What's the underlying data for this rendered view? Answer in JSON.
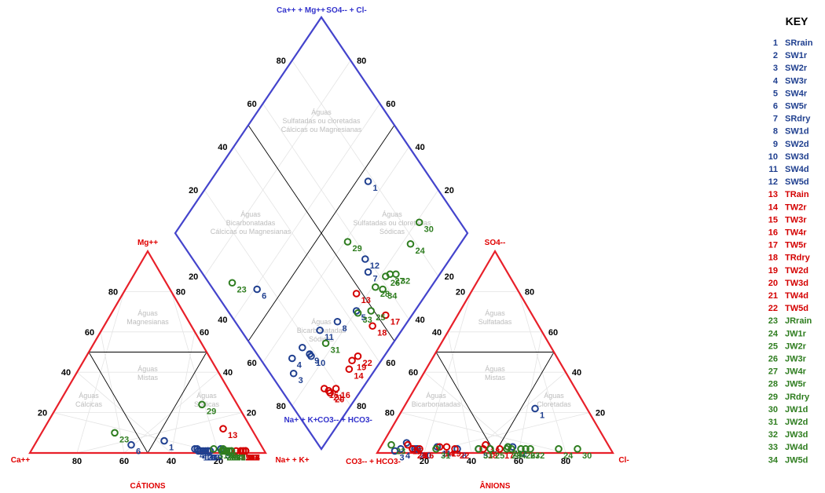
{
  "chart_data": {
    "type": "scatter",
    "subtype": "piper-diagram",
    "title": "",
    "cation_triangle": {
      "label": "CÁTIONS",
      "corners": {
        "left": "Ca++",
        "top": "Mg++",
        "right": "Na+ + K+"
      },
      "ticks_left_side": [
        "80",
        "60",
        "40",
        "20"
      ],
      "ticks_bottom": [
        "80",
        "60",
        "40",
        "20"
      ],
      "ticks_right_side": [
        "20",
        "40",
        "60",
        "80"
      ],
      "zones": [
        {
          "id": "mg",
          "lines": [
            "Águas",
            "Magnesianas"
          ]
        },
        {
          "id": "ca",
          "lines": [
            "Águas",
            "Cálcicas"
          ]
        },
        {
          "id": "mix",
          "lines": [
            "Águas",
            "Mistas"
          ]
        },
        {
          "id": "na",
          "lines": [
            "Águas",
            "Sódicas"
          ]
        }
      ]
    },
    "anion_triangle": {
      "label": "ÂNIONS",
      "corners": {
        "left": "CO3-- + HCO3-",
        "top": "SO4--",
        "right": "Cl-"
      },
      "ticks_left_side": [
        "80",
        "60",
        "40",
        "20"
      ],
      "ticks_bottom": [
        "20",
        "40",
        "60",
        "80"
      ],
      "ticks_right_side": [
        "80",
        "60",
        "40",
        "20"
      ],
      "zones": [
        {
          "id": "so4",
          "lines": [
            "Águas",
            "Sulfatadas"
          ]
        },
        {
          "id": "bic",
          "lines": [
            "Águas",
            "Bicarbonatadas"
          ]
        },
        {
          "id": "mix",
          "lines": [
            "Águas",
            "Mistas"
          ]
        },
        {
          "id": "cl",
          "lines": [
            "Águas",
            "Cloretadas"
          ]
        }
      ]
    },
    "diamond": {
      "corners": {
        "top_left": "Ca++ + Mg++",
        "top_right": "SO4-- + Cl-",
        "bottom_left": "Na+ + K+",
        "bottom_right": "CO3-- + HCO3-"
      },
      "ticks_left_side": [
        "80",
        "60",
        "40",
        "20"
      ],
      "ticks_right_side": [
        "80",
        "60",
        "40",
        "20"
      ],
      "ticks_lower_left": [
        "20",
        "40",
        "60",
        "80"
      ],
      "ticks_lower_right": [
        "20",
        "40",
        "60",
        "80"
      ],
      "zones": [
        {
          "id": "top",
          "lines": [
            "Águas",
            "Sulfatadas ou cloretadas",
            "Cálcicas ou Magnesianas"
          ]
        },
        {
          "id": "left",
          "lines": [
            "Águas",
            "Bicarbonatadas",
            "Cálcicas ou Magnesianas"
          ]
        },
        {
          "id": "right",
          "lines": [
            "Águas",
            "Sulfatadas ou cloretadas",
            "Sódicas"
          ]
        },
        {
          "id": "bottom",
          "lines": [
            "Águas",
            "Bicarbonatadas",
            "Sódicas"
          ]
        }
      ]
    },
    "legend_title": "KEY",
    "groups": [
      {
        "id": "SW",
        "color": "#1f3f8f"
      },
      {
        "id": "TW",
        "color": "#d40000"
      },
      {
        "id": "JW",
        "color": "#2e7d1f"
      }
    ],
    "samples": [
      {
        "n": 1,
        "name": "SRrain",
        "group": "SW",
        "ca": 40,
        "mg": 6,
        "so4": 22,
        "cl": 56
      },
      {
        "n": 2,
        "name": "SW1r",
        "group": "SW",
        "ca": 28,
        "mg": 2,
        "so4": 2,
        "cl": 15
      },
      {
        "n": 3,
        "name": "SW2r",
        "group": "SW",
        "ca": 26,
        "mg": 1,
        "so4": 1,
        "cl": 7
      },
      {
        "n": 4,
        "name": "SW3r",
        "group": "SW",
        "ca": 29,
        "mg": 2,
        "so4": 2,
        "cl": 9
      },
      {
        "n": 5,
        "name": "SW4r",
        "group": "SW",
        "ca": 18,
        "mg": 2,
        "so4": 2,
        "cl": 42
      },
      {
        "n": 6,
        "name": "SW5r",
        "group": "SW",
        "ca": 55,
        "mg": 4,
        "so4": 5,
        "cl": 10
      },
      {
        "n": 7,
        "name": "SRdry",
        "group": "SW",
        "ca": 24,
        "mg": 1,
        "so4": 3,
        "cl": 54
      },
      {
        "n": 8,
        "name": "SW1d",
        "group": "SW",
        "ca": 23,
        "mg": 1,
        "so4": 2,
        "cl": 33
      },
      {
        "n": 9,
        "name": "SW2d",
        "group": "SW",
        "ca": 25,
        "mg": 1,
        "so4": 2,
        "cl": 16
      },
      {
        "n": 10,
        "name": "SW3d",
        "group": "SW",
        "ca": 24,
        "mg": 1,
        "so4": 2,
        "cl": 16
      },
      {
        "n": 11,
        "name": "SW4d",
        "group": "SW",
        "ca": 27,
        "mg": 1,
        "so4": 3,
        "cl": 24
      },
      {
        "n": 12,
        "name": "SW5d",
        "group": "SW",
        "ca": 28,
        "mg": 1,
        "so4": 3,
        "cl": 56
      },
      {
        "n": 13,
        "name": "TRain",
        "group": "TW",
        "ca": 12,
        "mg": 12,
        "so4": 4,
        "cl": 44
      },
      {
        "n": 14,
        "name": "TW2r",
        "group": "TW",
        "ca": 8,
        "mg": 1,
        "so4": 3,
        "cl": 25
      },
      {
        "n": 15,
        "name": "TW3r",
        "group": "TW",
        "ca": 12,
        "mg": 1,
        "so4": 4,
        "cl": 11
      },
      {
        "n": 16,
        "name": "TW4r",
        "group": "TW",
        "ca": 8,
        "mg": 1,
        "so4": 2,
        "cl": 17
      },
      {
        "n": 17,
        "name": "TW5r",
        "group": "TW",
        "ca": 8,
        "mg": 1,
        "so4": 2,
        "cl": 51
      },
      {
        "n": 18,
        "name": "TRdry",
        "group": "TW",
        "ca": 10,
        "mg": 1,
        "so4": 2,
        "cl": 44
      },
      {
        "n": 19,
        "name": "TW2d",
        "group": "TW",
        "ca": 9,
        "mg": 1,
        "so4": 3,
        "cl": 28
      },
      {
        "n": 20,
        "name": "TW3d",
        "group": "TW",
        "ca": 9,
        "mg": 1,
        "so4": 2,
        "cl": 14
      },
      {
        "n": 21,
        "name": "TW4d",
        "group": "TW",
        "ca": 10,
        "mg": 1,
        "so4": 2,
        "cl": 14
      },
      {
        "n": 22,
        "name": "TW5d",
        "group": "TW",
        "ca": 8,
        "mg": 1,
        "so4": 2,
        "cl": 32
      },
      {
        "n": 23,
        "name": "JRrain",
        "group": "JW",
        "ca": 59,
        "mg": 10,
        "so4": 4,
        "cl": 4
      },
      {
        "n": 24,
        "name": "JW1r",
        "group": "JW",
        "ca": 16,
        "mg": 1,
        "so4": 2,
        "cl": 76
      },
      {
        "n": 25,
        "name": "JW2r",
        "group": "JW",
        "ca": 14,
        "mg": 1,
        "so4": 2,
        "cl": 47
      },
      {
        "n": 26,
        "name": "JW3r",
        "group": "JW",
        "ca": 17,
        "mg": 1,
        "so4": 2,
        "cl": 60
      },
      {
        "n": 27,
        "name": "JW4r",
        "group": "JW",
        "ca": 16,
        "mg": 1,
        "so4": 2,
        "cl": 62
      },
      {
        "n": 28,
        "name": "JW5r",
        "group": "JW",
        "ca": 18,
        "mg": 1,
        "so4": 2,
        "cl": 54
      },
      {
        "n": 29,
        "name": "JRdry",
        "group": "JW",
        "ca": 15,
        "mg": 24,
        "so4": 3,
        "cl": 54
      },
      {
        "n": 30,
        "name": "JW1d",
        "group": "JW",
        "ca": 17,
        "mg": 2,
        "so4": 2,
        "cl": 84
      },
      {
        "n": 31,
        "name": "JW2d",
        "group": "JW",
        "ca": 21,
        "mg": 2,
        "so4": 2,
        "cl": 24
      },
      {
        "n": 32,
        "name": "JW3d",
        "group": "JW",
        "ca": 14,
        "mg": 1,
        "so4": 2,
        "cl": 64
      },
      {
        "n": 33,
        "name": "JW4d",
        "group": "JW",
        "ca": 18,
        "mg": 1,
        "so4": 2,
        "cl": 42
      },
      {
        "n": 34,
        "name": "JW5d",
        "group": "JW",
        "ca": 15,
        "mg": 1,
        "so4": 2,
        "cl": 56
      }
    ]
  }
}
